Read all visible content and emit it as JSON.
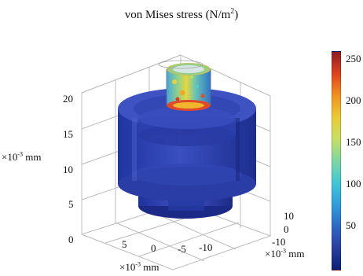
{
  "title": {
    "text": "von Mises stress (N/m",
    "sup": "2",
    "close": ")"
  },
  "axes": {
    "z_unit": {
      "prefix": "×10",
      "exp": "-3",
      "suffix": " mm"
    },
    "x_unit": {
      "prefix": "×10",
      "exp": "-3",
      "suffix": " mm"
    },
    "y_unit": {
      "prefix": "×10",
      "exp": "-3",
      "suffix": " mm"
    },
    "z_ticks": [
      "20",
      "15",
      "10",
      "5",
      "0"
    ],
    "x_ticks": [
      "5",
      "0",
      "-5",
      "-10"
    ],
    "y_ticks": [
      "10",
      "0",
      "-10"
    ]
  },
  "colorbar": {
    "ticks": [
      "250",
      "200",
      "150",
      "100",
      "50"
    ],
    "range": [
      0,
      265
    ],
    "colormap": [
      "#0b2072",
      "#2a3ea0",
      "#2d69c6",
      "#2f9fdb",
      "#41c8d6",
      "#7dd7a1",
      "#c6df62",
      "#eacb34",
      "#f29020",
      "#e0421d",
      "#8d1c22"
    ]
  },
  "colors": {
    "body_blue": "#2c3fa6",
    "body_dark": "#1b2a86",
    "body_light": "#4b5ec7",
    "grid": "#b8b8b8",
    "hot": "#d8422a",
    "mid": "#e8d236",
    "cool": "#4fc7d9"
  }
}
